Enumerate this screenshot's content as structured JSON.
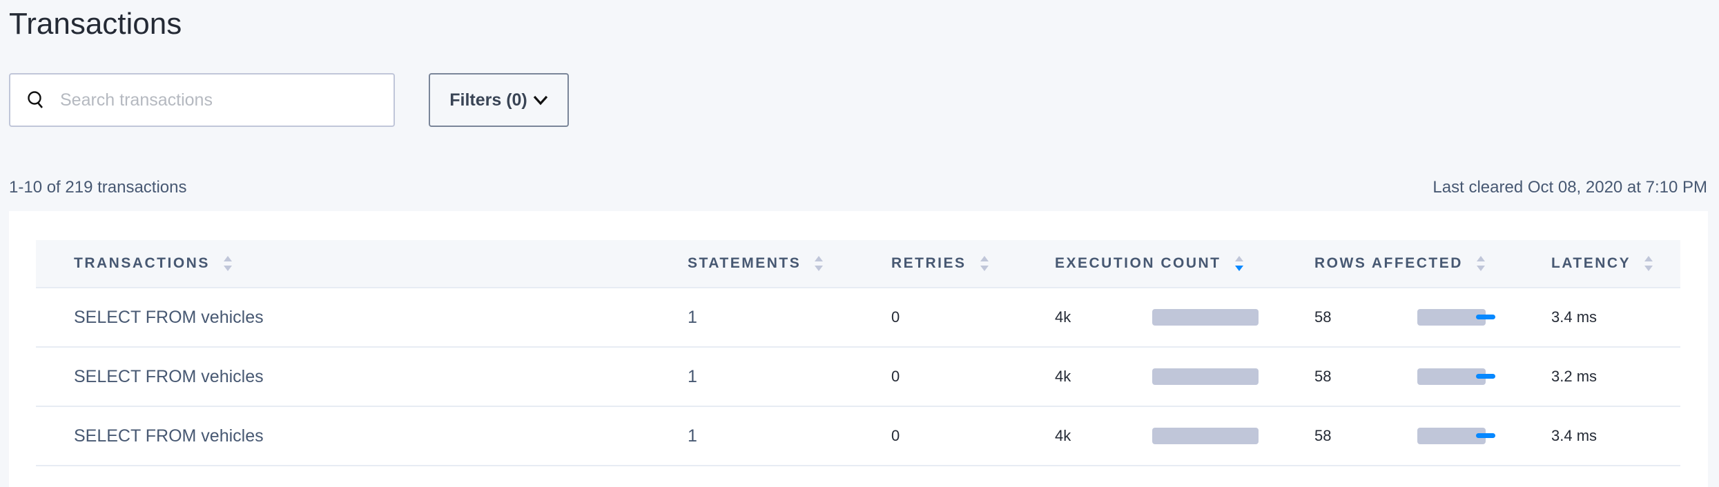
{
  "page": {
    "title": "Transactions",
    "search_placeholder": "Search transactions",
    "filters_label": "Filters (0)",
    "count_text": "1-10 of 219 transactions",
    "last_cleared": "Last cleared Oct 08, 2020 at 7:10 PM"
  },
  "colors": {
    "accent": "#0788ff",
    "bar": "#c0c6d9",
    "text": "#475872",
    "background": "#f5f7fa"
  },
  "table": {
    "columns": [
      {
        "label": "TRANSACTIONS",
        "sort": "none"
      },
      {
        "label": "STATEMENTS",
        "sort": "none"
      },
      {
        "label": "RETRIES",
        "sort": "none"
      },
      {
        "label": "EXECUTION COUNT",
        "sort": "descending"
      },
      {
        "label": "ROWS AFFECTED",
        "sort": "none"
      },
      {
        "label": "LATENCY",
        "sort": "none"
      }
    ],
    "rows": [
      {
        "transaction": "SELECT FROM vehicles",
        "statements": "1",
        "retries": "0",
        "execution_count": "4k",
        "execution_fraction": 1.0,
        "rows_affected": "58",
        "rows_fraction": 1.0,
        "latency": "3.4 ms"
      },
      {
        "transaction": "SELECT FROM vehicles",
        "statements": "1",
        "retries": "0",
        "execution_count": "4k",
        "execution_fraction": 1.0,
        "rows_affected": "58",
        "rows_fraction": 1.0,
        "latency": "3.2 ms"
      },
      {
        "transaction": "SELECT FROM vehicles",
        "statements": "1",
        "retries": "0",
        "execution_count": "4k",
        "execution_fraction": 1.0,
        "rows_affected": "58",
        "rows_fraction": 1.0,
        "latency": "3.4 ms"
      }
    ]
  }
}
